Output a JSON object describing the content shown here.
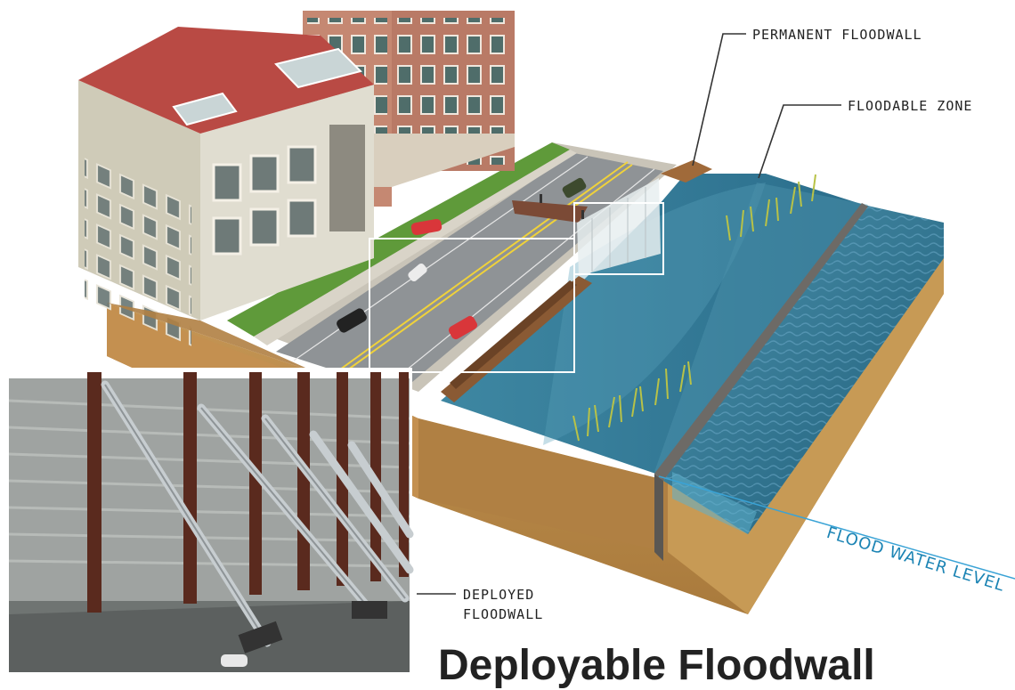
{
  "labels": {
    "permanent_floodwall": "PERMANENT FLOODWALL",
    "floodable_zone": "FLOODABLE ZONE",
    "deployed_floodwall_line1": "DEPLOYED",
    "deployed_floodwall_line2": "FLOODWALL",
    "flood_water_level": "FLOOD WATER LEVEL"
  },
  "title": "Deployable Floodwall",
  "colors": {
    "water": "#2a6f8e",
    "soil": "#b98a4a",
    "roof": "#b94a44",
    "road": "#8c8f92",
    "grass": "#5f9a3a",
    "label_line": "#333333",
    "flood_level_line": "#3aa3d6"
  },
  "icons": {
    "vehicles": "car-icon",
    "people": "person-icon"
  }
}
